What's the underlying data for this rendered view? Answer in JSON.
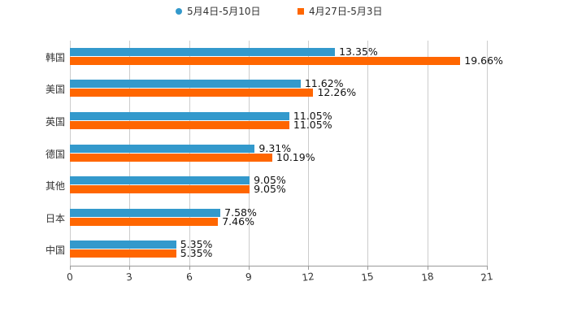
{
  "legend": [
    {
      "label": "5月4日-5月10日",
      "color": "#3399cc",
      "marker": "circle"
    },
    {
      "label": "4月27日-5月3日",
      "color": "#ff6600",
      "marker": "square"
    }
  ],
  "chart_data": {
    "type": "bar",
    "orientation": "horizontal",
    "title": "",
    "xlabel": "",
    "ylabel": "",
    "categories": [
      "韩国",
      "美国",
      "英国",
      "德国",
      "其他",
      "日本",
      "中国"
    ],
    "series": [
      {
        "name": "5月4日-5月10日",
        "color": "#3399cc",
        "values": [
          13.35,
          11.62,
          11.05,
          9.31,
          9.05,
          7.58,
          5.35
        ]
      },
      {
        "name": "4月27日-5月3日",
        "color": "#ff6600",
        "values": [
          19.66,
          12.26,
          11.05,
          10.19,
          9.05,
          7.46,
          5.35
        ]
      }
    ],
    "value_labels": {
      "5月4日-5月10日": [
        "13.35%",
        "11.62%",
        "11.05%",
        "9.31%",
        "9.05%",
        "7.58%",
        "5.35%"
      ],
      "4月27日-5月3日": [
        "19.66%",
        "12.26%",
        "11.05%",
        "10.19%",
        "9.05%",
        "7.46%",
        "5.35%"
      ]
    },
    "xlim": [
      0,
      21
    ],
    "xticks": [
      "0",
      "3",
      "6",
      "9",
      "12",
      "15",
      "18",
      "21"
    ],
    "grid": true,
    "legend_position": "top"
  }
}
